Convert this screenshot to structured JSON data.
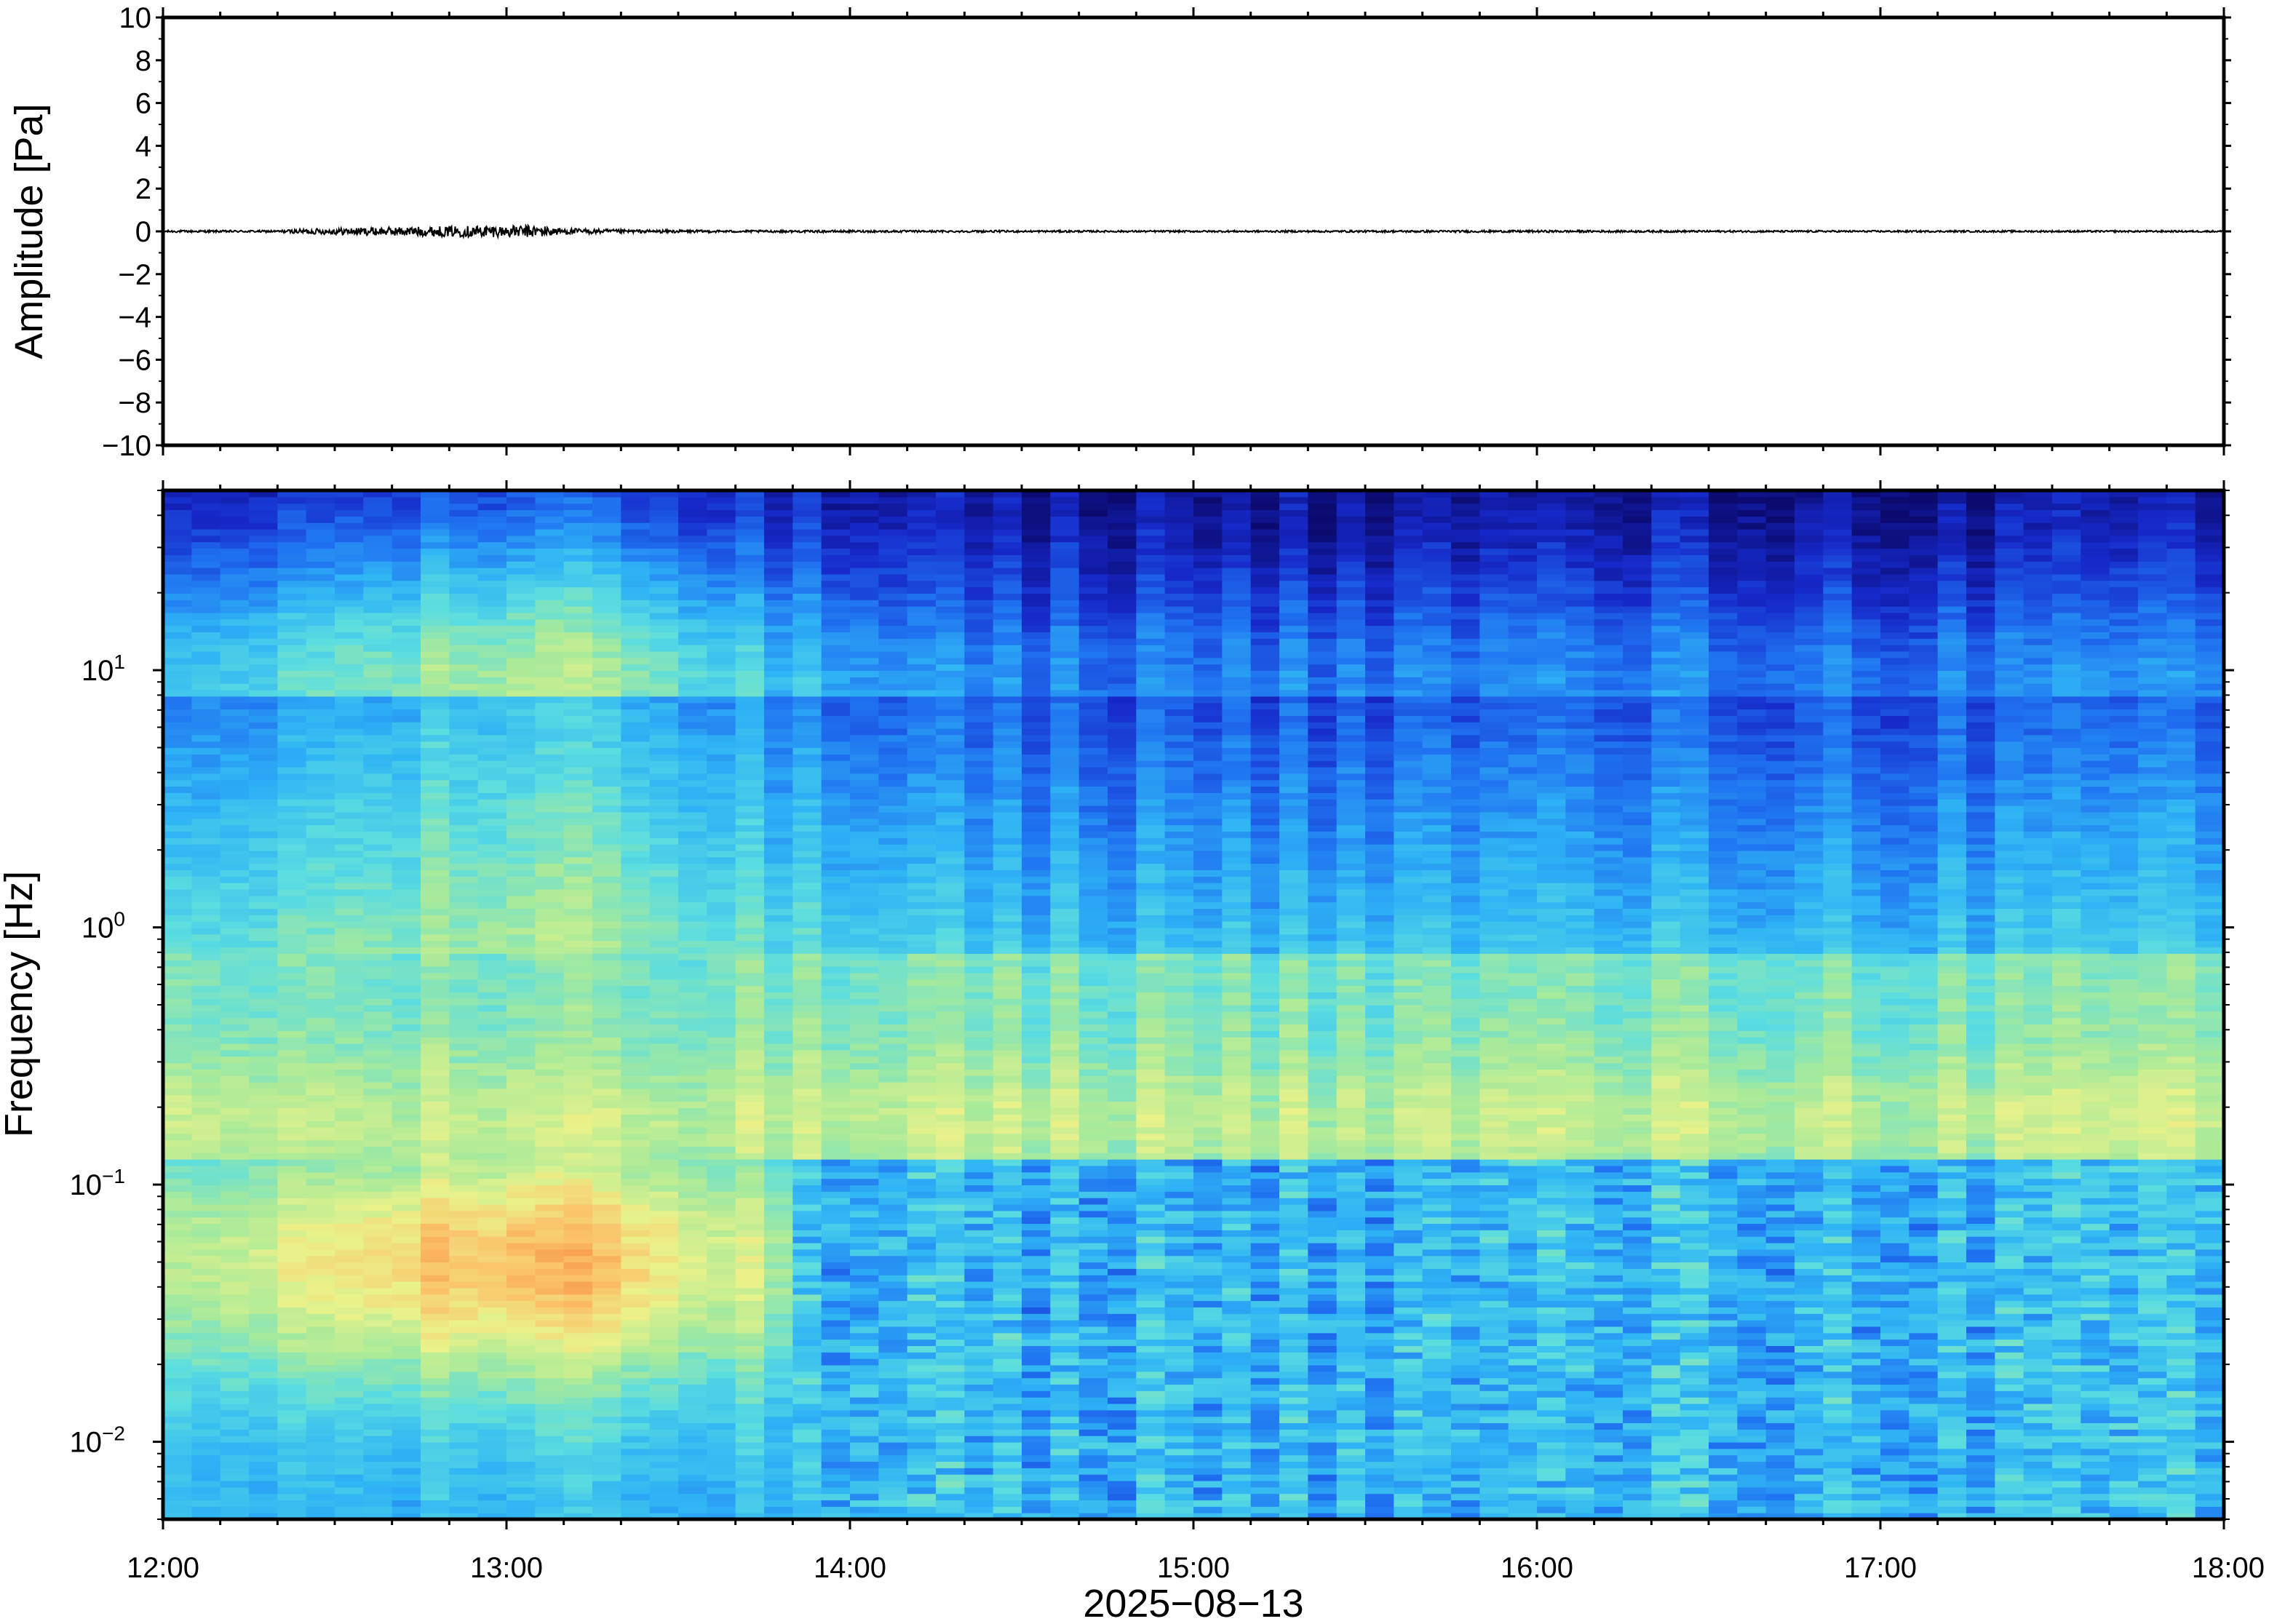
{
  "chart_data": [
    {
      "type": "line",
      "ylabel": "Amplitude [Pa]",
      "ylim": [
        -10,
        10
      ],
      "y_ticks": [
        10,
        8,
        6,
        4,
        2,
        0,
        -2,
        -4,
        -6,
        -8,
        -10
      ],
      "y_tick_labels": [
        "10",
        "8",
        "6",
        "4",
        "2",
        "0",
        "−2",
        "−4",
        "−6",
        "−8",
        "−10"
      ],
      "x_range": [
        "12:00",
        "18:00"
      ],
      "grid": false,
      "series": [
        {
          "x": [
            "12:00",
            "12:20",
            "12:25",
            "12:35",
            "12:45",
            "12:55",
            "13:00",
            "13:05",
            "13:10",
            "13:20",
            "13:40",
            "14:00",
            "15:00",
            "16:00",
            "17:00",
            "18:00"
          ],
          "y_envelope": [
            0.05,
            0.05,
            0.12,
            0.18,
            0.22,
            0.28,
            0.25,
            0.3,
            0.15,
            0.08,
            0.05,
            0.05,
            0.04,
            0.05,
            0.04,
            0.04
          ],
          "color": "#000000"
        }
      ]
    },
    {
      "type": "heatmap",
      "ylabel": "Frequency [Hz]",
      "yscale": "log",
      "ylim": [
        0.005,
        50
      ],
      "y_ticks": [
        0.01,
        0.1,
        1,
        10
      ],
      "y_tick_labels": [
        {
          "base": "10",
          "exp": "−2"
        },
        {
          "base": "10",
          "exp": "−1"
        },
        {
          "base": "10",
          "exp": "0"
        },
        {
          "base": "10",
          "exp": "1"
        }
      ],
      "x_range": [
        "12:00",
        "18:00"
      ],
      "x_ticks": [
        "12:00",
        "13:00",
        "14:00",
        "15:00",
        "16:00",
        "17:00",
        "18:00"
      ],
      "xlabel": "2025−08−13",
      "colormap": [
        "#0b0a6e",
        "#1628c8",
        "#1f6ff0",
        "#2fb4f5",
        "#5bdde0",
        "#a8ea9a",
        "#eaf28a",
        "#fbc26a",
        "#f5883f"
      ],
      "time_columns": 72,
      "frequency_rows": 160
    }
  ]
}
